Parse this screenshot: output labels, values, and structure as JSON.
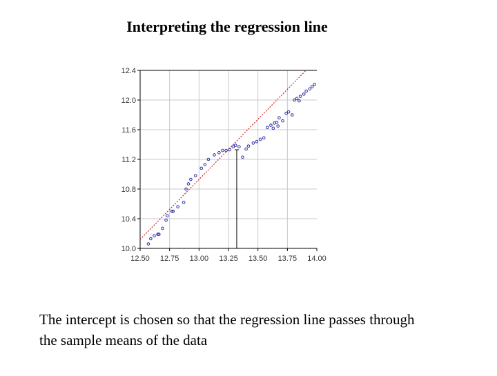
{
  "slide": {
    "title": "Interpreting the regression line",
    "caption_line1": "The intercept is chosen so that the regression line passes through",
    "caption_line2": "the sample means of the data"
  },
  "colors": {
    "points": "#2a2aa8",
    "regression_line": "#cc2222",
    "mean_marker": "#000000",
    "grid": "#c8c8c8",
    "axis": "#000000",
    "tick_text": "#333333"
  },
  "chart_data": {
    "type": "scatter",
    "title": "",
    "xlabel": "",
    "ylabel": "",
    "xlim": [
      12.5,
      14.0
    ],
    "ylim": [
      10.0,
      12.4
    ],
    "grid": true,
    "xticks": [
      "12.50",
      "12.75",
      "13.00",
      "13.25",
      "13.50",
      "13.75",
      "14.00"
    ],
    "yticks": [
      "10.0",
      "10.4",
      "10.8",
      "11.2",
      "11.6",
      "12.0",
      "12.4"
    ],
    "regression_line": {
      "x": [
        12.5,
        14.0
      ],
      "y": [
        10.12,
        12.55
      ],
      "style": "dotted"
    },
    "sample_mean": {
      "x": 13.32,
      "y": 11.33
    },
    "points": [
      [
        12.57,
        10.06
      ],
      [
        12.59,
        10.13
      ],
      [
        12.62,
        10.17
      ],
      [
        12.65,
        10.19
      ],
      [
        12.66,
        10.19
      ],
      [
        12.69,
        10.27
      ],
      [
        12.72,
        10.38
      ],
      [
        12.73,
        10.44
      ],
      [
        12.77,
        10.5
      ],
      [
        12.78,
        10.5
      ],
      [
        12.82,
        10.56
      ],
      [
        12.87,
        10.62
      ],
      [
        12.89,
        10.8
      ],
      [
        12.91,
        10.87
      ],
      [
        12.93,
        10.93
      ],
      [
        12.97,
        10.98
      ],
      [
        13.02,
        11.08
      ],
      [
        13.05,
        11.13
      ],
      [
        13.08,
        11.2
      ],
      [
        13.13,
        11.26
      ],
      [
        13.17,
        11.29
      ],
      [
        13.2,
        11.32
      ],
      [
        13.23,
        11.32
      ],
      [
        13.26,
        11.33
      ],
      [
        13.29,
        11.37
      ],
      [
        13.31,
        11.39
      ],
      [
        13.34,
        11.37
      ],
      [
        13.37,
        11.23
      ],
      [
        13.4,
        11.34
      ],
      [
        13.42,
        11.38
      ],
      [
        13.46,
        11.42
      ],
      [
        13.49,
        11.44
      ],
      [
        13.52,
        11.47
      ],
      [
        13.55,
        11.49
      ],
      [
        13.58,
        11.63
      ],
      [
        13.61,
        11.66
      ],
      [
        13.64,
        11.69
      ],
      [
        13.66,
        11.7
      ],
      [
        13.68,
        11.76
      ],
      [
        13.71,
        11.72
      ],
      [
        13.74,
        11.82
      ],
      [
        13.76,
        11.84
      ],
      [
        13.79,
        11.8
      ],
      [
        13.81,
        12.0
      ],
      [
        13.83,
        12.02
      ],
      [
        13.86,
        12.05
      ],
      [
        13.89,
        12.08
      ],
      [
        13.91,
        12.12
      ],
      [
        13.94,
        12.15
      ],
      [
        13.96,
        12.18
      ],
      [
        13.98,
        12.21
      ],
      [
        13.63,
        11.62
      ],
      [
        13.67,
        11.65
      ],
      [
        13.85,
        11.99
      ]
    ]
  }
}
